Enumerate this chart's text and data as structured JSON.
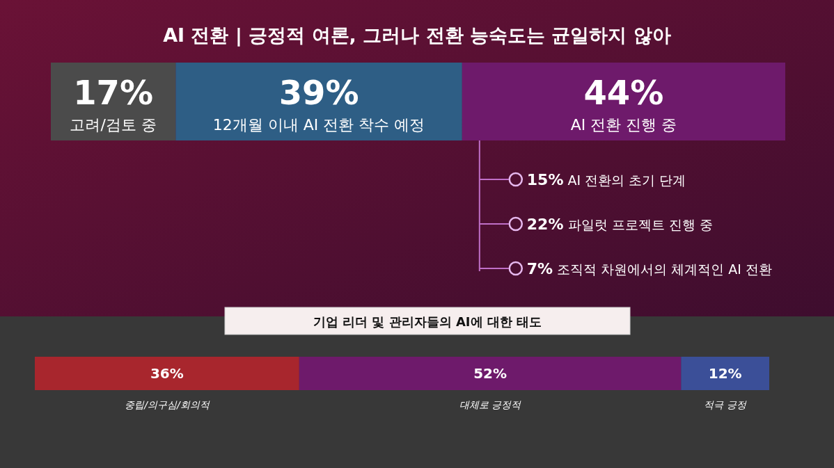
{
  "chart_data": [
    {
      "type": "bar",
      "title": "AI 전환 | 긍정적 여론, 그러나 전환 능숙도는 균일하지 않아",
      "orientation": "horizontal",
      "stacked": true,
      "categories": [
        null
      ],
      "xlim": [
        0,
        100
      ],
      "tick_labels": false,
      "series": [
        {
          "name": "고려/검토 중",
          "color": "#4b4b4b",
          "values": [
            17
          ],
          "value_labels": [
            "17%"
          ]
        },
        {
          "name": "12개월 이내 AI 전환 착수 예정",
          "color": "#2e5e85",
          "values": [
            39
          ],
          "value_labels": [
            "39%"
          ]
        },
        {
          "name": "AI 전환 진행 중",
          "color": "#6e1a6b",
          "values": [
            44
          ],
          "value_labels": [
            "44%"
          ]
        }
      ],
      "annotations": [
        "15% AI 전환의 초기 단계",
        "22% 파일럿 프로젝트 진행 중",
        "7% 조직적 차원에서의 체계적인 AI 전환"
      ]
    },
    {
      "type": "bar",
      "title": "기업 리더 및 관리자들의 AI에 대한 태도",
      "orientation": "horizontal",
      "stacked": true,
      "categories": [
        null
      ],
      "xlim": [
        0,
        100
      ],
      "tick_labels": false,
      "series": [
        {
          "name": "중립/의구심/회의적",
          "color": "#a8262d",
          "values": [
            36
          ],
          "value_labels": [
            "36%"
          ]
        },
        {
          "name": "대체로 긍정적",
          "color": "#6e1a6b",
          "values": [
            52
          ],
          "value_labels": [
            "52%"
          ]
        },
        {
          "name": "적극 긍정",
          "color": "#3b4f98",
          "values": [
            12
          ],
          "value_labels": [
            "12%"
          ]
        }
      ]
    }
  ]
}
